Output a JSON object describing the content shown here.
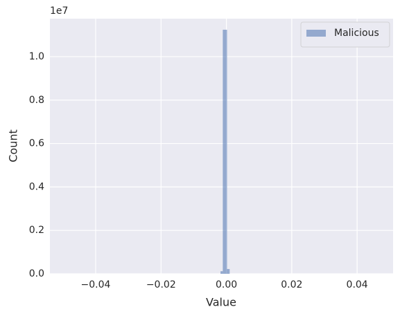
{
  "chart_data": {
    "type": "histogram",
    "xlabel": "Value",
    "ylabel": "Count",
    "y_offset_text": "1e7",
    "bins": [
      -0.0018,
      -0.0011,
      0.0002,
      0.001
    ],
    "series": [
      {
        "name": "Malicious",
        "color": "#4c72b0",
        "values": [
          120000,
          11240000,
          220000
        ]
      }
    ],
    "xlim": [
      -0.054,
      0.051
    ],
    "xticks": [
      {
        "value": -0.04,
        "label": "−0.04"
      },
      {
        "value": -0.02,
        "label": "−0.02"
      },
      {
        "value": 0,
        "label": "0.00"
      },
      0.02,
      0.04
    ],
    "ylim": [
      0,
      11750000
    ],
    "yticks": [
      {
        "value": 0,
        "label": "0.0"
      },
      {
        "value": 2000000,
        "label": "0.2"
      },
      {
        "value": 4000000,
        "label": "0.4"
      },
      {
        "value": 6000000,
        "label": "0.6"
      },
      {
        "value": 8000000,
        "label": "0.8"
      },
      {
        "value": 10000000,
        "label": "1.0"
      }
    ],
    "grid": true,
    "legend": "upper right"
  }
}
